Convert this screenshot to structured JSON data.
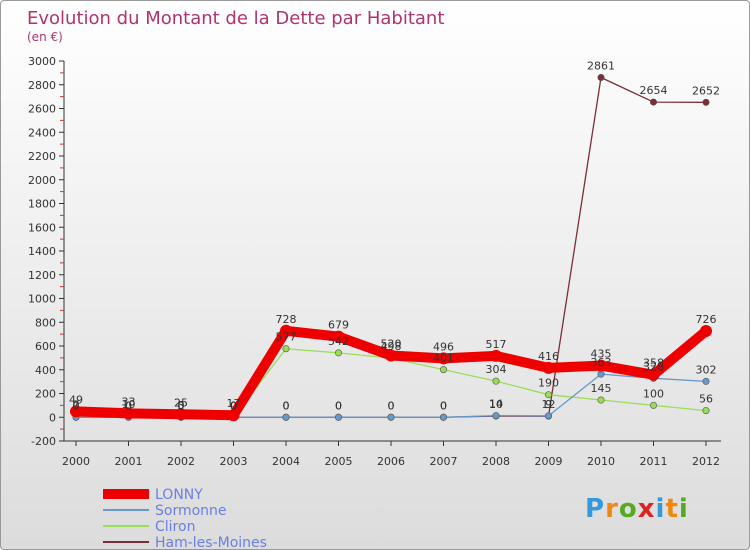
{
  "chart_data": {
    "type": "line",
    "title": "Evolution du Montant de la Dette par Habitant",
    "subtitle": "(en €)",
    "xlabel": "",
    "ylabel": "",
    "ylim": [
      -200,
      3000
    ],
    "yticks": [
      -200,
      0,
      200,
      400,
      600,
      800,
      1000,
      1200,
      1400,
      1600,
      1800,
      2000,
      2200,
      2400,
      2600,
      2800,
      3000
    ],
    "grid": false,
    "categories": [
      "2000",
      "2001",
      "2002",
      "2003",
      "2004",
      "2005",
      "2006",
      "2007",
      "2008",
      "2009",
      "2010",
      "2011",
      "2012"
    ],
    "legend_position": "bottom-left",
    "series": [
      {
        "name": "Ham-les-Moines",
        "color": "#7a2e37",
        "values": [
          0,
          0,
          0,
          0,
          0,
          0,
          0,
          0,
          10,
          9,
          2861,
          2654,
          2652
        ],
        "labels": [
          "0",
          "0",
          "0",
          "0",
          "0",
          "0",
          "0",
          "0",
          "10",
          "9",
          "2861",
          "2654",
          "2652"
        ]
      },
      {
        "name": "Cliron",
        "color": "#99dd55",
        "values": [
          7,
          10,
          3,
          0,
          577,
          542,
          498,
          401,
          304,
          190,
          145,
          100,
          56
        ],
        "labels": [
          "7",
          "10",
          "3",
          "0",
          "577",
          "542",
          "498",
          "401",
          "304",
          "190",
          "145",
          "100",
          "56"
        ]
      },
      {
        "name": "Sormonne",
        "color": "#6699cc",
        "values": [
          0,
          0,
          0,
          0,
          0,
          0,
          0,
          0,
          14,
          12,
          363,
          328,
          302
        ],
        "labels": [
          "0",
          "0",
          "0",
          "0",
          "0",
          "0",
          "0",
          "0",
          "14",
          "12",
          "363",
          "328",
          "302"
        ]
      },
      {
        "name": "LONNY",
        "color": "#ee0000",
        "values": [
          49,
          33,
          25,
          17,
          728,
          679,
          520,
          496,
          517,
          416,
          435,
          358,
          726
        ],
        "labels": [
          "49",
          "33",
          "25",
          "17",
          "728",
          "679",
          "520",
          "496",
          "517",
          "416",
          "435",
          "358",
          "726"
        ]
      }
    ],
    "legend": [
      "LONNY",
      "Sormonne",
      "Cliron",
      "Ham-les-Moines"
    ]
  },
  "logo": {
    "text": "Proxiti"
  }
}
